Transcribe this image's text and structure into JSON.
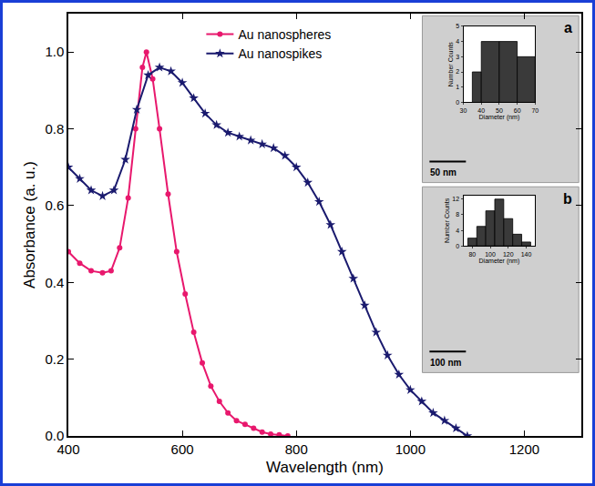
{
  "chart_data": [
    {
      "type": "line",
      "x_label": "Wavelength (nm)",
      "y_label": "Absorbance (a. u.)",
      "xlim": [
        400,
        1300
      ],
      "xticks": [
        400,
        600,
        800,
        1000,
        1200
      ],
      "ylim": [
        0,
        1.1
      ],
      "yticks": [
        {
          "value": 0,
          "label": "0.0"
        },
        0.2,
        0.4,
        0.6,
        0.8,
        {
          "value": 1,
          "label": "1.0"
        }
      ],
      "grid": false,
      "legend": "top",
      "series": [
        {
          "name": "Au nanospheres",
          "color": "#e8186d",
          "marker": "circle",
          "line_style": "solid",
          "x": [
            400,
            420,
            440,
            460,
            475,
            490,
            505,
            518,
            530,
            537,
            548,
            560,
            575,
            590,
            605,
            620,
            635,
            650,
            665,
            680,
            695,
            710,
            725,
            740,
            755,
            770,
            785
          ],
          "values": [
            0.48,
            0.45,
            0.43,
            0.425,
            0.43,
            0.49,
            0.62,
            0.8,
            0.96,
            1.0,
            0.93,
            0.8,
            0.63,
            0.48,
            0.37,
            0.27,
            0.19,
            0.13,
            0.09,
            0.06,
            0.04,
            0.03,
            0.02,
            0.01,
            0.005,
            0.003,
            0.0
          ]
        },
        {
          "name": "Au nanospikes",
          "color": "#1a1a6e",
          "marker": "star",
          "line_style": "solid",
          "x": [
            400,
            420,
            440,
            460,
            480,
            500,
            520,
            540,
            560,
            580,
            600,
            620,
            640,
            660,
            680,
            700,
            720,
            740,
            760,
            780,
            800,
            820,
            840,
            860,
            880,
            900,
            920,
            940,
            960,
            980,
            1000,
            1020,
            1040,
            1060,
            1080,
            1100
          ],
          "values": [
            0.7,
            0.67,
            0.64,
            0.625,
            0.64,
            0.72,
            0.85,
            0.94,
            0.96,
            0.95,
            0.92,
            0.88,
            0.84,
            0.81,
            0.79,
            0.78,
            0.77,
            0.76,
            0.75,
            0.73,
            0.7,
            0.66,
            0.61,
            0.55,
            0.48,
            0.41,
            0.34,
            0.27,
            0.21,
            0.16,
            0.12,
            0.09,
            0.06,
            0.04,
            0.02,
            0.0
          ]
        }
      ]
    },
    {
      "type": "histogram",
      "x_label": "Diameter (nm)",
      "y_label": "Number Counts",
      "bins": [
        35,
        40,
        50,
        60,
        70
      ],
      "counts": [
        2,
        4,
        4,
        3
      ],
      "color": "#3a3a3a",
      "xlim": [
        30,
        70
      ],
      "xticks": [
        30,
        40,
        50,
        60,
        70
      ],
      "ylim": [
        0,
        5
      ],
      "yticks": [
        0,
        1,
        2,
        3,
        4,
        5
      ],
      "annotations": [
        "a",
        "50 nm"
      ]
    },
    {
      "type": "histogram",
      "x_label": "Diameter (nm)",
      "y_label": "Number Counts",
      "bins": [
        75,
        85,
        95,
        105,
        115,
        125,
        135,
        145
      ],
      "counts": [
        2,
        5,
        9,
        12,
        7,
        3,
        1
      ],
      "color": "#3a3a3a",
      "xlim": [
        70,
        150
      ],
      "xticks": [
        80,
        100,
        120,
        140
      ],
      "ylim": [
        0,
        13
      ],
      "yticks": [
        0,
        4,
        8,
        12
      ],
      "annotations": [
        "b",
        "100 nm"
      ]
    }
  ]
}
